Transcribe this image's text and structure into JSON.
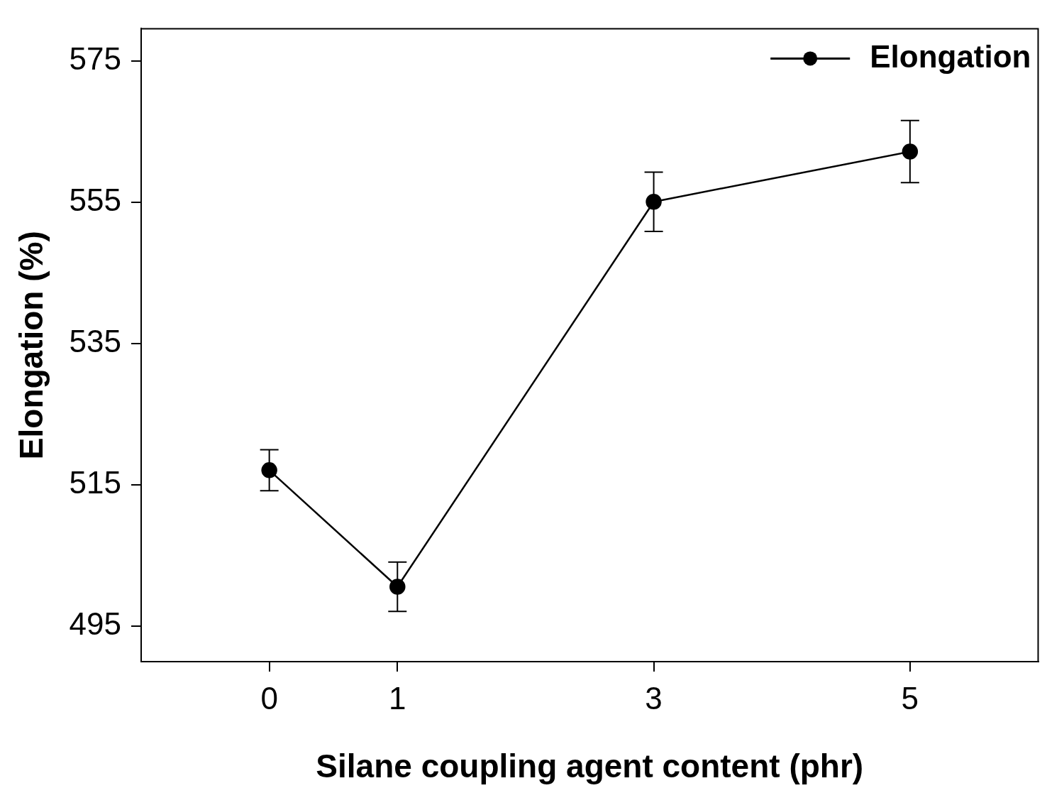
{
  "chart_data": {
    "type": "line",
    "xlabel": "Silane coupling agent content (phr)",
    "ylabel": "Elongation (%)",
    "x": [
      0,
      1,
      3,
      5
    ],
    "series": [
      {
        "name": "Elongation",
        "color": "#000000",
        "values": [
          517.1,
          500.6,
          555.1,
          562.2
        ],
        "errors": [
          2.9,
          3.5,
          4.2,
          4.4
        ]
      }
    ],
    "xlim": [
      -1,
      6
    ],
    "xticks": [
      0,
      1,
      3,
      5
    ],
    "ylim": [
      490,
      579.6
    ],
    "yticks": [
      495,
      515,
      535,
      555,
      575
    ],
    "grid": false,
    "legend": "top right",
    "marker": "circle",
    "line_style": "solid"
  }
}
